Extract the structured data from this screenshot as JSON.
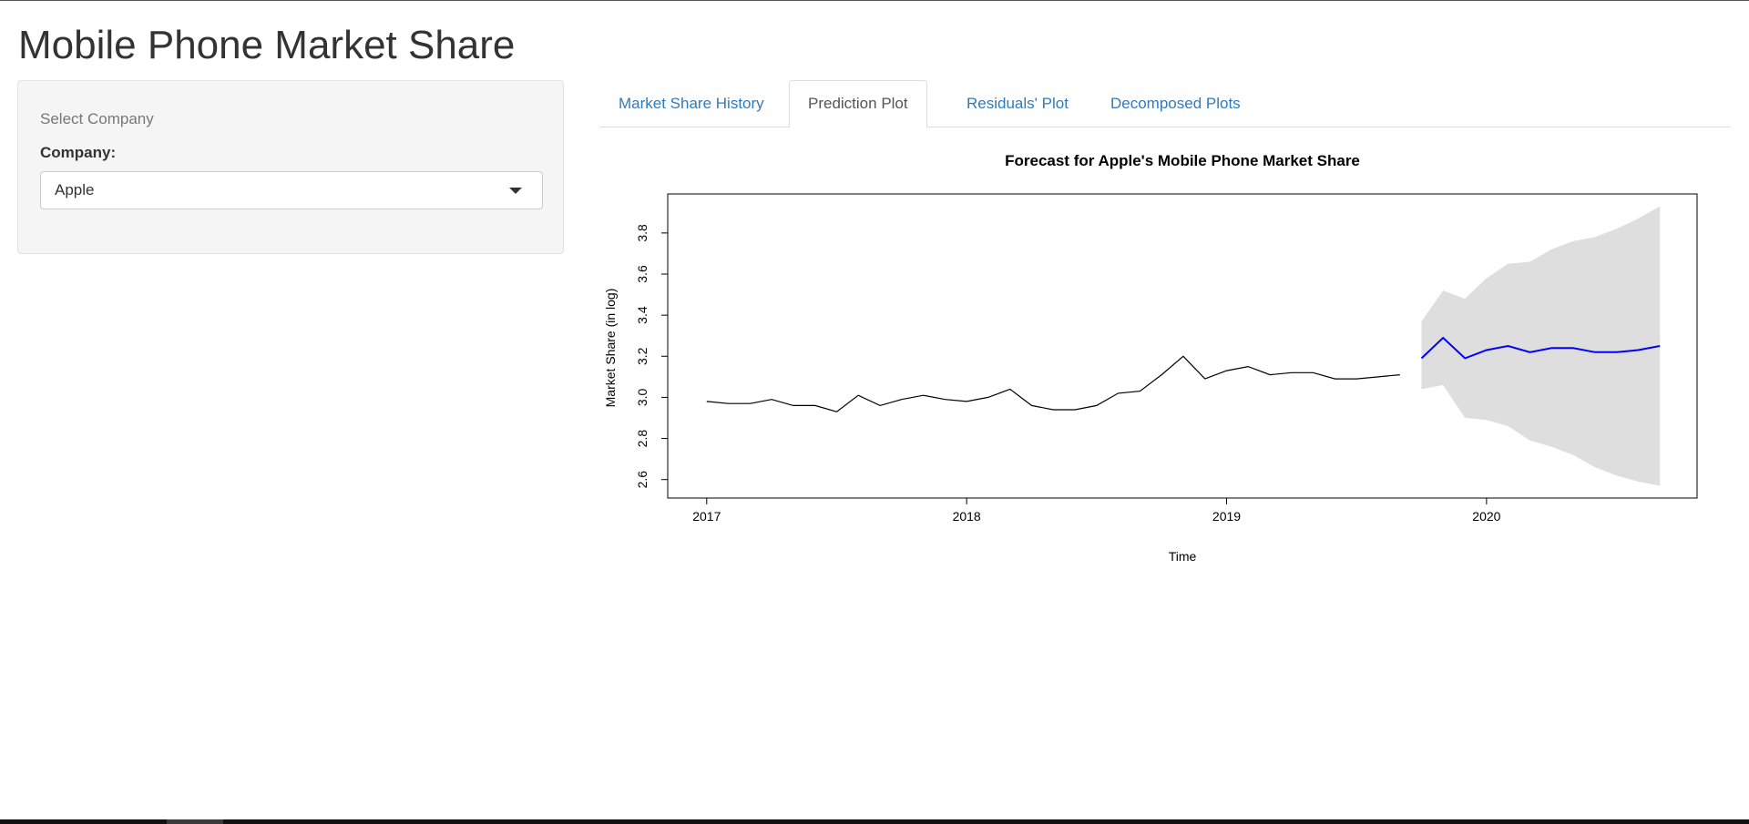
{
  "app": {
    "title": "Mobile Phone Market Share"
  },
  "sidebar": {
    "heading": "Select Company",
    "company_label": "Company:",
    "company_value": "Apple"
  },
  "tabs": [
    {
      "label": "Market Share History",
      "active": false
    },
    {
      "label": "Prediction Plot",
      "active": true
    },
    {
      "label": "Residuals' Plot",
      "active": false
    },
    {
      "label": "Decomposed Plots",
      "active": false
    }
  ],
  "chart_data": {
    "type": "line",
    "title": "Forecast for Apple's Mobile Phone Market Share",
    "xlabel": "Time",
    "ylabel": "Market Share (in log)",
    "xlim": [
      2016.85,
      2020.81
    ],
    "ylim": [
      2.51,
      3.99
    ],
    "x_ticks": [
      2017,
      2018,
      2019,
      2020
    ],
    "y_ticks": [
      2.6,
      2.8,
      3.0,
      3.2,
      3.4,
      3.6,
      3.8
    ],
    "colors": {
      "history": "#000000",
      "forecast": "#0000ff",
      "interval": "#dedede"
    },
    "series": [
      {
        "x": [
          2017.0,
          2017.083,
          2017.167,
          2017.25,
          2017.333,
          2017.417,
          2017.5,
          2017.583,
          2017.667,
          2017.75,
          2017.833,
          2017.917,
          2018.0,
          2018.083,
          2018.167,
          2018.25,
          2018.333,
          2018.417,
          2018.5,
          2018.583,
          2018.667,
          2018.75,
          2018.833,
          2018.917,
          2019.0,
          2019.083,
          2019.167,
          2019.25,
          2019.333,
          2019.417,
          2019.5,
          2019.583,
          2019.667
        ],
        "values": [
          2.98,
          2.97,
          2.97,
          2.99,
          2.96,
          2.96,
          2.93,
          3.01,
          2.96,
          2.99,
          3.01,
          2.99,
          2.98,
          3.0,
          3.04,
          2.96,
          2.94,
          2.94,
          2.96,
          3.02,
          3.03,
          3.11,
          3.2,
          3.09,
          3.13,
          3.15,
          3.11,
          3.12,
          3.12,
          3.09,
          3.09,
          3.1,
          3.11
        ]
      },
      {
        "x": [
          2019.75,
          2019.833,
          2019.917,
          2020.0,
          2020.083,
          2020.167,
          2020.25,
          2020.333,
          2020.417,
          2020.5,
          2020.583,
          2020.667
        ],
        "values": [
          3.19,
          3.29,
          3.19,
          3.23,
          3.25,
          3.22,
          3.24,
          3.24,
          3.22,
          3.22,
          3.23,
          3.25
        ],
        "upper": [
          3.37,
          3.52,
          3.48,
          3.58,
          3.65,
          3.66,
          3.72,
          3.76,
          3.78,
          3.82,
          3.87,
          3.93
        ],
        "lower": [
          3.04,
          3.06,
          2.9,
          2.89,
          2.86,
          2.79,
          2.76,
          2.72,
          2.66,
          2.62,
          2.59,
          2.57
        ]
      }
    ],
    "grid": false,
    "legend": "none"
  }
}
